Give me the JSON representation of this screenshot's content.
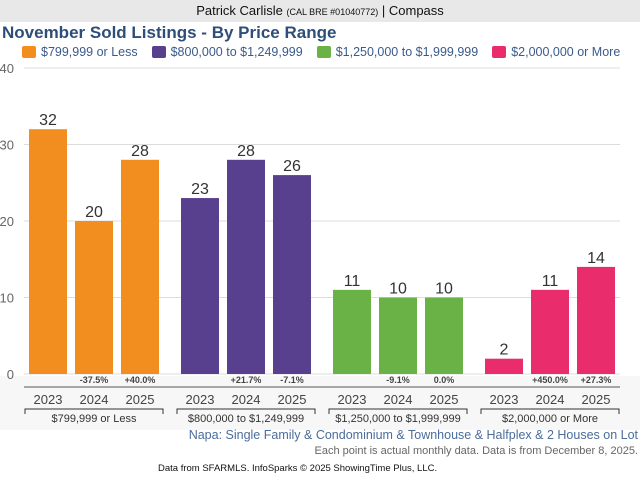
{
  "header": {
    "agent_name": "Patrick Carlisle",
    "license": "(CAL BRE #01040772)",
    "separator": "|",
    "brokerage": "Compass"
  },
  "chart_data": {
    "type": "bar",
    "title": "November Sold Listings - By Price Range",
    "ylim": [
      0,
      40
    ],
    "yticks": [
      0,
      10,
      20,
      30,
      40
    ],
    "grid": true,
    "legend_position": "top",
    "groups": [
      {
        "name": "$799,999 or Less",
        "color": "#f28e20",
        "bars": [
          {
            "year": "2023",
            "value": 32,
            "change": ""
          },
          {
            "year": "2024",
            "value": 20,
            "change": "-37.5%"
          },
          {
            "year": "2025",
            "value": 28,
            "change": "+40.0%"
          }
        ]
      },
      {
        "name": "$800,000 to $1,249,999",
        "color": "#59408f",
        "bars": [
          {
            "year": "2023",
            "value": 23,
            "change": ""
          },
          {
            "year": "2024",
            "value": 28,
            "change": "+21.7%"
          },
          {
            "year": "2025",
            "value": 26,
            "change": "-7.1%"
          }
        ]
      },
      {
        "name": "$1,250,000 to $1,999,999",
        "color": "#6ab245",
        "bars": [
          {
            "year": "2023",
            "value": 11,
            "change": ""
          },
          {
            "year": "2024",
            "value": 10,
            "change": "-9.1%"
          },
          {
            "year": "2025",
            "value": 10,
            "change": "0.0%"
          }
        ]
      },
      {
        "name": "$2,000,000 or More",
        "color": "#e92c6b",
        "bars": [
          {
            "year": "2023",
            "value": 2,
            "change": ""
          },
          {
            "year": "2024",
            "value": 11,
            "change": "+450.0%"
          },
          {
            "year": "2025",
            "value": 14,
            "change": "+27.3%"
          }
        ]
      }
    ]
  },
  "footer": {
    "subtitle": "Napa: Single Family & Condominium & Townhouse & Halfplex & 2 Houses on Lot",
    "note": "Each point is actual monthly data. Data is from December 8, 2025.",
    "source": "Data from SFARMLS. InfoSparks © 2025 ShowingTime Plus, LLC."
  }
}
